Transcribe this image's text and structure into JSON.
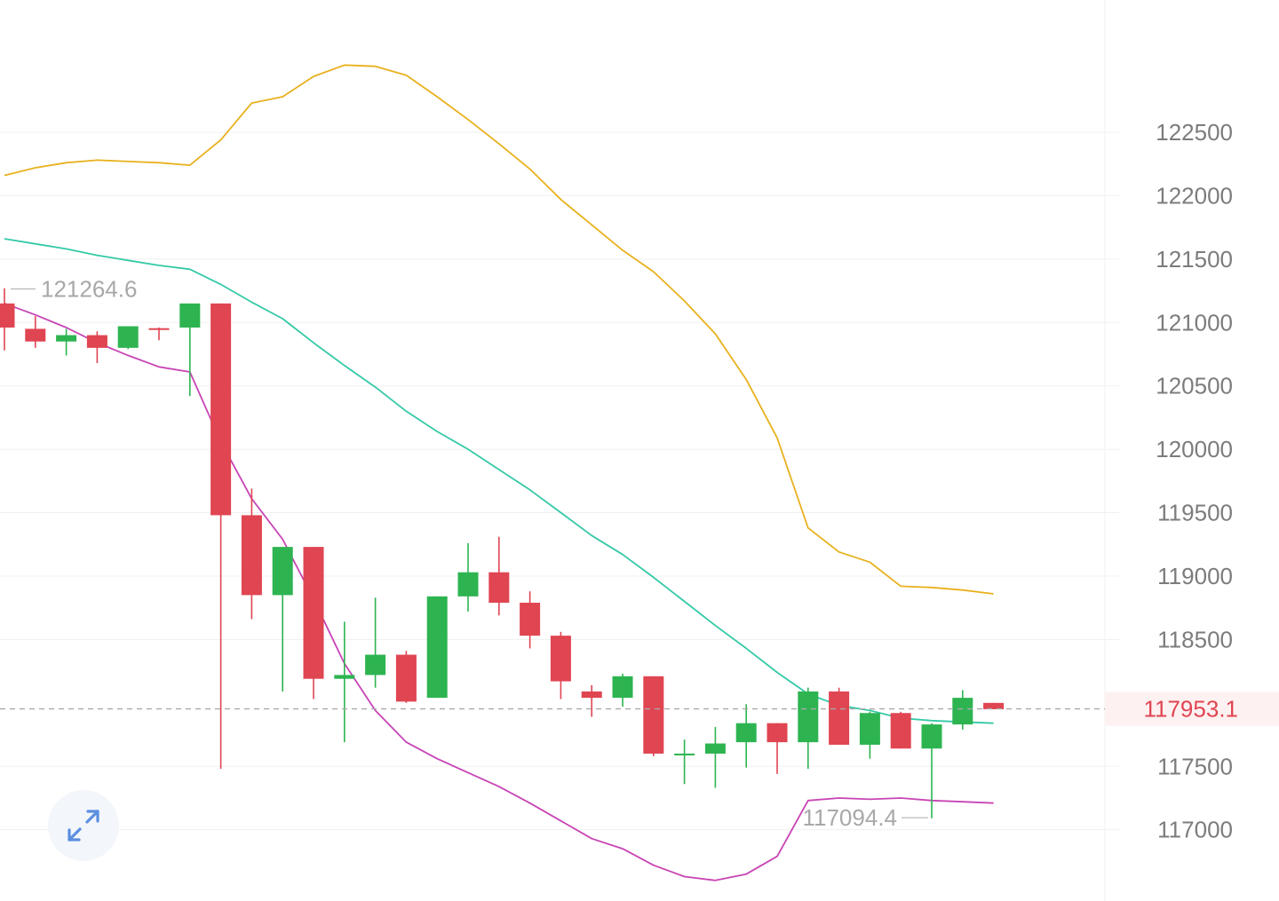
{
  "colors": {
    "up": "#2db451",
    "down": "#e04552",
    "upper_band": "#e8b11e",
    "middle_band": "#35c9a6",
    "lower_band": "#c844b5",
    "current_price": "#e04552",
    "axis_text": "#7c7c7c",
    "marker_text": "#a8a8a8",
    "grid": "#f0f0f0"
  },
  "chart_data": {
    "type": "candlestick",
    "y_ticks": [
      "122500",
      "122000",
      "121500",
      "121000",
      "120500",
      "120000",
      "119500",
      "119000",
      "118500",
      "117500",
      "117000"
    ],
    "ylim": [
      116650,
      123500
    ],
    "grid": true,
    "current_price": {
      "label": "117953.1",
      "value": 117953.1
    },
    "high_marker": {
      "label": "121264.6",
      "value": 121264.6
    },
    "low_marker": {
      "label": "117094.4",
      "value": 117094.4
    },
    "candles": [
      {
        "open": 121150,
        "high": 121270,
        "close": 120960,
        "low": 120780
      },
      {
        "open": 120950,
        "high": 121050,
        "close": 120850,
        "low": 120800
      },
      {
        "open": 120850,
        "high": 120950,
        "close": 120900,
        "low": 120740
      },
      {
        "open": 120900,
        "high": 120930,
        "close": 120800,
        "low": 120680
      },
      {
        "open": 120800,
        "high": 120970,
        "close": 120970,
        "low": 120790
      },
      {
        "open": 120955,
        "high": 120960,
        "close": 120950,
        "low": 120860
      },
      {
        "open": 120960,
        "high": 121150,
        "close": 121150,
        "low": 120420
      },
      {
        "open": 121150,
        "high": 121150,
        "close": 119480,
        "low": 117480
      },
      {
        "open": 119480,
        "high": 119690,
        "close": 118850,
        "low": 118660
      },
      {
        "open": 118850,
        "high": 119230,
        "close": 119230,
        "low": 118090
      },
      {
        "open": 119230,
        "high": 119230,
        "close": 118190,
        "low": 118030
      },
      {
        "open": 118190,
        "high": 118640,
        "close": 118220,
        "low": 117690
      },
      {
        "open": 118220,
        "high": 118830,
        "close": 118380,
        "low": 118120
      },
      {
        "open": 118380,
        "high": 118410,
        "close": 118010,
        "low": 118000
      },
      {
        "open": 118040,
        "high": 118840,
        "close": 118840,
        "low": 118040
      },
      {
        "open": 118840,
        "high": 119260,
        "close": 119030,
        "low": 118720
      },
      {
        "open": 119030,
        "high": 119310,
        "close": 118790,
        "low": 118690
      },
      {
        "open": 118790,
        "high": 118880,
        "close": 118530,
        "low": 118430
      },
      {
        "open": 118530,
        "high": 118560,
        "close": 118170,
        "low": 118030
      },
      {
        "open": 118090,
        "high": 118140,
        "close": 118040,
        "low": 117890
      },
      {
        "open": 118040,
        "high": 118230,
        "close": 118210,
        "low": 117970
      },
      {
        "open": 118210,
        "high": 118210,
        "close": 117600,
        "low": 117580
      },
      {
        "open": 117600,
        "high": 117710,
        "close": 117600,
        "low": 117360
      },
      {
        "open": 117600,
        "high": 117810,
        "close": 117680,
        "low": 117330
      },
      {
        "open": 117690,
        "high": 117990,
        "close": 117840,
        "low": 117490
      },
      {
        "open": 117840,
        "high": 117840,
        "close": 117690,
        "low": 117440
      },
      {
        "open": 117690,
        "high": 118120,
        "close": 118090,
        "low": 117480
      },
      {
        "open": 118090,
        "high": 118120,
        "close": 117670,
        "low": 117670
      },
      {
        "open": 117670,
        "high": 117930,
        "close": 117920,
        "low": 117560
      },
      {
        "open": 117920,
        "high": 117930,
        "close": 117640,
        "low": 117640
      },
      {
        "open": 117640,
        "high": 117840,
        "close": 117830,
        "low": 117090
      },
      {
        "open": 117830,
        "high": 118100,
        "close": 118040,
        "low": 117790
      },
      {
        "open": 118000,
        "high": 118000,
        "close": 117950,
        "low": 117950
      }
    ],
    "upper_band": [
      122160,
      122220,
      122260,
      122280,
      122270,
      122260,
      122240,
      122440,
      122730,
      122780,
      122940,
      123030,
      123020,
      122950,
      122780,
      122600,
      122410,
      122210,
      121970,
      121770,
      121570,
      121400,
      121170,
      120910,
      120550,
      120090,
      119380,
      119190,
      119110,
      118920,
      118910,
      118890,
      118860
    ],
    "middle_band": [
      121660,
      121620,
      121580,
      121530,
      121490,
      121450,
      121420,
      121300,
      121160,
      121030,
      120840,
      120660,
      120490,
      120300,
      120140,
      120000,
      119840,
      119680,
      119500,
      119320,
      119170,
      118990,
      118800,
      118610,
      118430,
      118240,
      118070,
      117980,
      117940,
      117880,
      117860,
      117850,
      117840
    ],
    "lower_band": [
      121150,
      121060,
      120960,
      120840,
      120740,
      120650,
      120610,
      120060,
      119610,
      119290,
      118820,
      118310,
      117940,
      117690,
      117560,
      117450,
      117340,
      117210,
      117070,
      116930,
      116850,
      116720,
      116630,
      116600,
      116650,
      116790,
      117230,
      117250,
      117240,
      117250,
      117230,
      117220,
      117210
    ]
  }
}
